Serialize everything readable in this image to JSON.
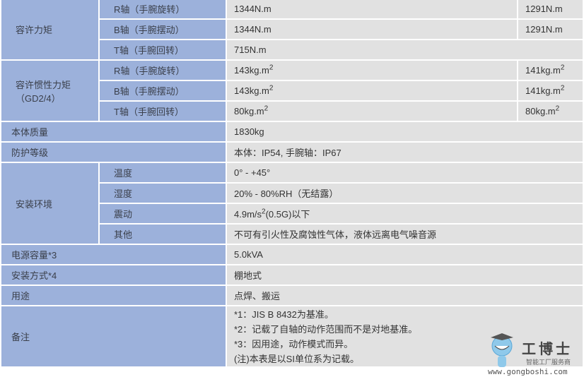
{
  "rows": {
    "torque": {
      "label": "容许力矩",
      "r": {
        "axis": "R轴（手腕旋转）",
        "v1": "1344N.m",
        "v2": "1291N.m"
      },
      "b": {
        "axis": "B轴（手腕摆动）",
        "v1": "1344N.m",
        "v2": "1291N.m"
      },
      "t": {
        "axis": "T轴（手腕回转）",
        "v1": "715N.m"
      }
    },
    "inertia": {
      "label": "容许惯性力矩",
      "label2": "（GD2/4）",
      "sup": "2",
      "r": {
        "axis": "R轴（手腕旋转）",
        "v1": "143kg.m",
        "v2": "141kg.m"
      },
      "b": {
        "axis": "B轴（手腕摆动）",
        "v1": "143kg.m",
        "v2": "141kg.m"
      },
      "t": {
        "axis": "T轴（手腕回转）",
        "v1": "80kg.m",
        "v2": "80kg.m"
      }
    },
    "mass": {
      "label": "本体质量",
      "value": "1830kg"
    },
    "protection": {
      "label": "防护等级",
      "value": "本体：IP54, 手腕轴：IP67"
    },
    "env": {
      "label": "安装环境",
      "temp": {
        "label": "温度",
        "value": "0° - +45°"
      },
      "humidity": {
        "label": "湿度",
        "value": "20% - 80%RH（无结露）"
      },
      "vibration": {
        "label": "震动",
        "value_pre": "4.9m/s",
        "sup": "2",
        "value_post": "(0.5G)以下"
      },
      "other": {
        "label": "其他",
        "value": "不可有引火性及腐蚀性气体，液体远离电气噪音源"
      }
    },
    "power": {
      "label": "电源容量*3",
      "value": "5.0kVA"
    },
    "mount": {
      "label": "安装方式*4",
      "value": "棚地式"
    },
    "use": {
      "label": "用途",
      "value": "点焊、搬运"
    },
    "notes": {
      "label": "备注",
      "lines": [
        "*1：JIS B 8432为基准。",
        "*2：记载了自轴的动作范围而不是对地基准。",
        "*3：因用途，动作模式而异。",
        "(注)本表是以SI单位系为记载。"
      ]
    }
  },
  "watermark": {
    "brand": "工博士",
    "tagline": "智能工厂服务商",
    "url": "www.gongboshi.com"
  }
}
